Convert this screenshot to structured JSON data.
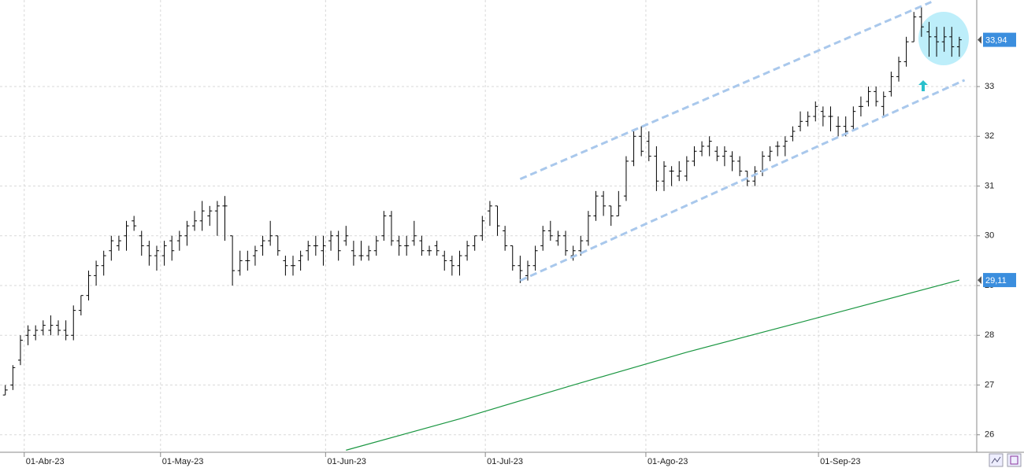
{
  "chart_data": {
    "type": "ohlc",
    "color": "#000000",
    "ohlc": [
      [
        26.8,
        27.0,
        26.8,
        26.9
      ],
      [
        27.0,
        27.4,
        26.9,
        27.35
      ],
      [
        27.5,
        28.0,
        27.4,
        27.9
      ],
      [
        28.0,
        28.2,
        27.8,
        28.1
      ],
      [
        28.0,
        28.2,
        27.9,
        28.1
      ],
      [
        28.1,
        28.3,
        28.0,
        28.2
      ],
      [
        28.1,
        28.4,
        28.0,
        28.2
      ],
      [
        28.2,
        28.3,
        28.0,
        28.1
      ],
      [
        28.1,
        28.3,
        27.9,
        28.0
      ],
      [
        28.0,
        28.6,
        27.9,
        28.5
      ],
      [
        28.5,
        28.8,
        28.4,
        28.8
      ],
      [
        28.8,
        29.3,
        28.7,
        29.2
      ],
      [
        29.2,
        29.5,
        29.0,
        29.4
      ],
      [
        29.4,
        29.7,
        29.2,
        29.6
      ],
      [
        29.7,
        30.0,
        29.5,
        29.9
      ],
      [
        29.8,
        30.0,
        29.7,
        29.9
      ],
      [
        30.0,
        30.3,
        29.7,
        30.2
      ],
      [
        30.3,
        30.4,
        30.1,
        30.2
      ],
      [
        30.0,
        30.1,
        29.6,
        29.8
      ],
      [
        29.8,
        29.9,
        29.4,
        29.6
      ],
      [
        29.6,
        29.8,
        29.3,
        29.7
      ],
      [
        29.6,
        29.9,
        29.4,
        29.8
      ],
      [
        29.9,
        30.0,
        29.5,
        29.7
      ],
      [
        29.9,
        30.1,
        29.7,
        30.0
      ],
      [
        30.0,
        30.3,
        29.8,
        30.2
      ],
      [
        30.2,
        30.5,
        30.1,
        30.3
      ],
      [
        30.3,
        30.7,
        30.1,
        30.5
      ],
      [
        30.4,
        30.6,
        30.2,
        30.5
      ],
      [
        30.5,
        30.7,
        30.0,
        30.6
      ],
      [
        30.6,
        30.8,
        29.9,
        30.6
      ],
      [
        30.0,
        30.0,
        29.0,
        29.3
      ],
      [
        29.3,
        29.7,
        29.2,
        29.5
      ],
      [
        29.5,
        29.7,
        29.3,
        29.5
      ],
      [
        29.6,
        29.8,
        29.4,
        29.7
      ],
      [
        29.8,
        30.0,
        29.6,
        29.9
      ],
      [
        29.9,
        30.3,
        29.8,
        30.0
      ],
      [
        30.0,
        30.0,
        29.6,
        29.7
      ],
      [
        29.5,
        29.6,
        29.2,
        29.4
      ],
      [
        29.4,
        29.6,
        29.2,
        29.4
      ],
      [
        29.5,
        29.7,
        29.3,
        29.6
      ],
      [
        29.7,
        29.9,
        29.5,
        29.8
      ],
      [
        29.8,
        30.0,
        29.6,
        29.8
      ],
      [
        29.7,
        30.0,
        29.4,
        29.8
      ],
      [
        29.9,
        30.1,
        29.7,
        30.0
      ],
      [
        30.0,
        30.1,
        29.5,
        29.7
      ],
      [
        29.9,
        30.2,
        29.8,
        30.0
      ],
      [
        29.7,
        29.9,
        29.4,
        29.6
      ],
      [
        29.6,
        29.9,
        29.5,
        29.6
      ],
      [
        29.6,
        29.8,
        29.5,
        29.7
      ],
      [
        29.7,
        30.0,
        29.6,
        29.9
      ],
      [
        30.0,
        30.5,
        29.9,
        30.4
      ],
      [
        30.4,
        30.5,
        29.8,
        29.9
      ],
      [
        29.9,
        30.0,
        29.6,
        29.8
      ],
      [
        29.8,
        30.0,
        29.6,
        29.8
      ],
      [
        29.9,
        30.3,
        29.8,
        30.0
      ],
      [
        29.9,
        30.0,
        29.6,
        29.7
      ],
      [
        29.7,
        29.8,
        29.6,
        29.7
      ],
      [
        29.8,
        29.9,
        29.6,
        29.7
      ],
      [
        29.6,
        29.7,
        29.3,
        29.5
      ],
      [
        29.5,
        29.6,
        29.2,
        29.4
      ],
      [
        29.4,
        29.7,
        29.2,
        29.6
      ],
      [
        29.6,
        29.9,
        29.5,
        29.8
      ],
      [
        29.8,
        30.0,
        29.7,
        30.0
      ],
      [
        30.0,
        30.4,
        29.9,
        30.3
      ],
      [
        30.5,
        30.7,
        30.2,
        30.6
      ],
      [
        30.6,
        30.6,
        30.0,
        30.2
      ],
      [
        30.1,
        30.2,
        29.7,
        29.8
      ],
      [
        29.8,
        29.8,
        29.3,
        29.4
      ],
      [
        29.4,
        29.6,
        29.05,
        29.3
      ],
      [
        29.2,
        29.5,
        29.1,
        29.4
      ],
      [
        29.4,
        29.8,
        29.3,
        29.7
      ],
      [
        29.8,
        30.2,
        29.7,
        30.1
      ],
      [
        30.1,
        30.3,
        29.9,
        30.0
      ],
      [
        29.9,
        30.1,
        29.8,
        30.0
      ],
      [
        30.0,
        30.1,
        29.6,
        29.7
      ],
      [
        29.6,
        29.8,
        29.5,
        29.7
      ],
      [
        29.7,
        30.0,
        29.6,
        29.9
      ],
      [
        29.9,
        30.5,
        29.8,
        30.4
      ],
      [
        30.4,
        30.9,
        30.3,
        30.8
      ],
      [
        30.8,
        30.9,
        30.4,
        30.6
      ],
      [
        30.6,
        30.6,
        30.2,
        30.4
      ],
      [
        30.4,
        30.9,
        30.4,
        30.6
      ],
      [
        30.8,
        31.6,
        30.7,
        31.5
      ],
      [
        31.5,
        32.1,
        31.4,
        32.0
      ],
      [
        32.0,
        32.2,
        31.6,
        31.7
      ],
      [
        31.9,
        32.1,
        31.5,
        31.6
      ],
      [
        31.6,
        31.8,
        30.9,
        31.1
      ],
      [
        31.1,
        31.5,
        30.9,
        31.4
      ],
      [
        31.3,
        31.4,
        31.0,
        31.3
      ],
      [
        31.2,
        31.5,
        31.1,
        31.3
      ],
      [
        31.2,
        31.6,
        31.1,
        31.5
      ],
      [
        31.5,
        31.8,
        31.4,
        31.7
      ],
      [
        31.7,
        31.9,
        31.6,
        31.8
      ],
      [
        31.8,
        32.0,
        31.6,
        31.9
      ],
      [
        31.7,
        31.8,
        31.5,
        31.6
      ],
      [
        31.6,
        31.8,
        31.4,
        31.7
      ],
      [
        31.6,
        31.7,
        31.3,
        31.5
      ],
      [
        31.5,
        31.6,
        31.2,
        31.3
      ],
      [
        31.3,
        31.3,
        31.0,
        31.1
      ],
      [
        31.1,
        31.4,
        31.0,
        31.3
      ],
      [
        31.3,
        31.7,
        31.2,
        31.6
      ],
      [
        31.6,
        31.8,
        31.5,
        31.7
      ],
      [
        31.8,
        31.9,
        31.6,
        31.8
      ],
      [
        31.8,
        32.0,
        31.6,
        31.9
      ],
      [
        32.0,
        32.2,
        31.9,
        32.1
      ],
      [
        32.2,
        32.5,
        32.1,
        32.3
      ],
      [
        32.3,
        32.5,
        32.2,
        32.4
      ],
      [
        32.4,
        32.7,
        32.3,
        32.6
      ],
      [
        32.5,
        32.6,
        32.2,
        32.4
      ],
      [
        32.4,
        32.6,
        32.1,
        32.4
      ],
      [
        32.2,
        32.4,
        32.0,
        32.2
      ],
      [
        32.2,
        32.4,
        32.0,
        32.1
      ],
      [
        32.2,
        32.6,
        32.1,
        32.5
      ],
      [
        32.6,
        32.8,
        32.4,
        32.6
      ],
      [
        32.7,
        33.0,
        32.6,
        32.9
      ],
      [
        32.9,
        33.0,
        32.6,
        32.7
      ],
      [
        32.6,
        32.9,
        32.4,
        32.8
      ],
      [
        32.9,
        33.3,
        32.8,
        33.2
      ],
      [
        33.2,
        33.6,
        33.1,
        33.5
      ],
      [
        33.5,
        34.0,
        33.4,
        33.9
      ],
      [
        33.9,
        34.5,
        33.9,
        34.4
      ],
      [
        34.4,
        34.6,
        34.0,
        34.2
      ],
      [
        34.1,
        34.3,
        33.6,
        34.0
      ],
      [
        34.0,
        34.2,
        33.6,
        33.9
      ],
      [
        33.9,
        34.2,
        33.7,
        34.0
      ],
      [
        34.0,
        34.2,
        33.6,
        33.8
      ],
      [
        33.8,
        34.0,
        33.6,
        33.94
      ]
    ],
    "moving_average": {
      "color": "#1a9641",
      "x": [
        45,
        60,
        75,
        90,
        105,
        126
      ],
      "values": [
        25.69,
        26.32,
        27.0,
        27.66,
        28.26,
        29.11
      ]
    },
    "trendlines": [
      {
        "color": "#a9c8ec",
        "x": [
          68,
          122.3
        ],
        "values": [
          31.14,
          34.7
        ]
      },
      {
        "color": "#a9c8ec",
        "x": [
          68,
          126.7
        ],
        "values": [
          29.1,
          33.13
        ]
      }
    ],
    "price_labels": [
      {
        "value": 33.94,
        "label": "33,94"
      },
      {
        "value": 29.11,
        "label": "29,11"
      }
    ],
    "label_color": "#3b8ede",
    "xlim": [
      -0.7,
      128.3
    ],
    "xticks": [
      {
        "value": 2.5,
        "label": "01-Abr-23"
      },
      {
        "value": 20.5,
        "label": "01-May-23"
      },
      {
        "value": 42.3,
        "label": "01-Jun-23"
      },
      {
        "value": 63.4,
        "label": "01-Jul-23"
      },
      {
        "value": 84.6,
        "label": "01-Ago-23"
      },
      {
        "value": 107.4,
        "label": "01-Sep-23"
      }
    ],
    "ylim": [
      25.68,
      34.74
    ],
    "yticks": [
      26,
      27,
      28,
      29,
      30,
      31,
      32,
      33
    ],
    "grid": true
  }
}
